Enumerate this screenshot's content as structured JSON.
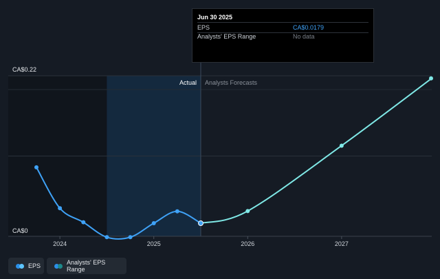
{
  "tooltip": {
    "date": "Jun 30 2025",
    "rows": [
      {
        "label": "EPS",
        "value": "CA$0.0179"
      },
      {
        "label": "Analysts' EPS Range",
        "value": "No data"
      }
    ]
  },
  "legend": [
    {
      "label": "EPS",
      "colors": [
        "#2b8fe8",
        "#5cc4ff"
      ]
    },
    {
      "label": "Analysts' EPS Range",
      "colors": [
        "#2b8fe8",
        "#1d8a8a"
      ]
    }
  ],
  "chart_data": {
    "type": "line",
    "ylim": [
      0,
      0.22
    ],
    "xlim": [
      2023.45,
      2027.96
    ],
    "y_tick_labels": [
      {
        "value": 0.22,
        "label": "CA$0.22"
      },
      {
        "value": 0,
        "label": "CA$0"
      }
    ],
    "x_ticks": [
      2024,
      2025,
      2026,
      2027
    ],
    "x_tick_labels": [
      "2024",
      "2025",
      "2026",
      "2027"
    ],
    "section_labels": {
      "actual": "Actual",
      "forecast": "Analysts Forecasts"
    },
    "divider_x": 2025.5,
    "shaded_past_range": [
      2024.5,
      2025.5
    ],
    "series": [
      {
        "name": "EPS",
        "color": "#3fa2f7",
        "x": [
          2023.75,
          2024.0,
          2024.25,
          2024.5,
          2024.75,
          2025.0,
          2025.25,
          2025.5
        ],
        "y": [
          0.0945,
          0.0385,
          0.0192,
          -0.0012,
          -0.0012,
          0.0179,
          0.0342,
          0.0179
        ]
      },
      {
        "name": "Analysts Forecasts",
        "color": "#7fe8e6",
        "x": [
          2025.5,
          2026.0,
          2027.0,
          2027.96
        ],
        "y": [
          0.0179,
          0.0346,
          0.1242,
          0.2165
        ]
      }
    ]
  }
}
